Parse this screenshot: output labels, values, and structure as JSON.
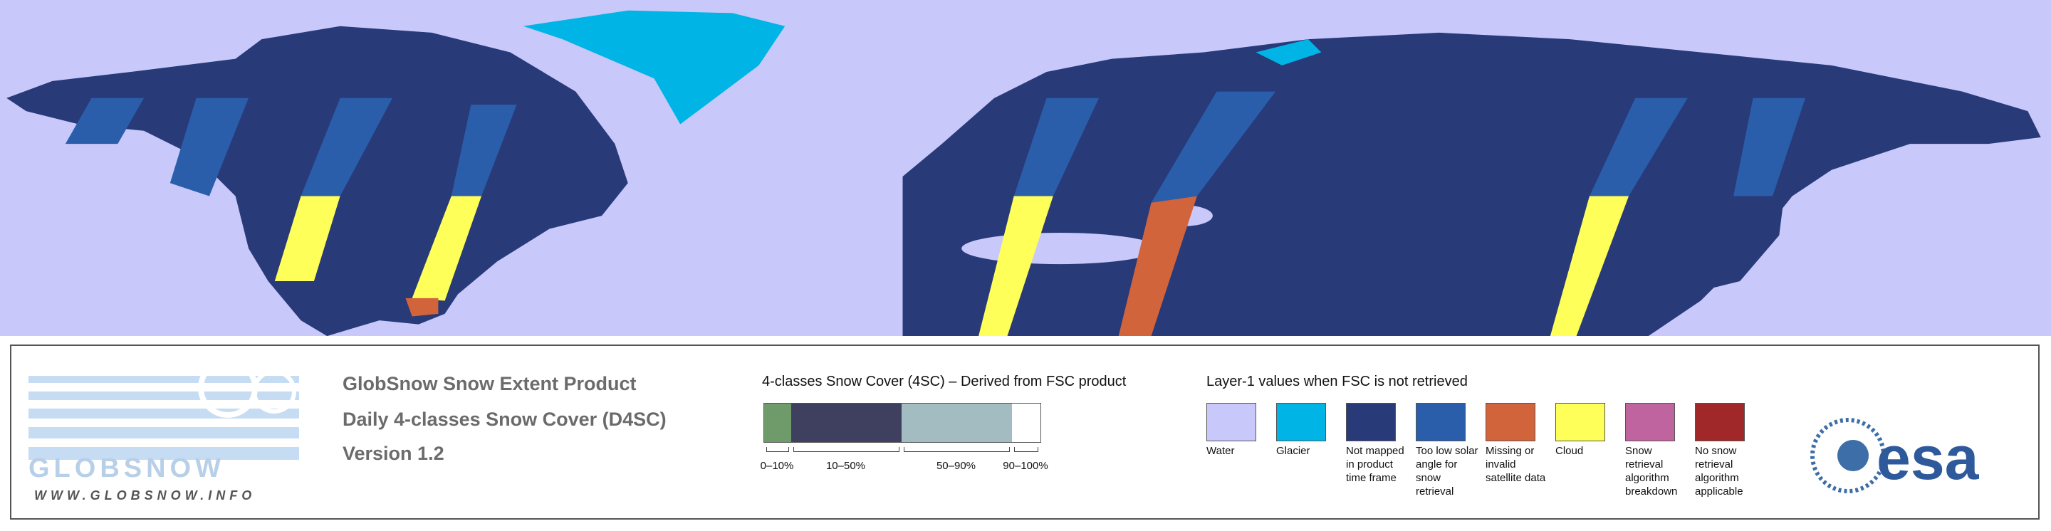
{
  "logo": {
    "name": "GLOBSNOW",
    "url": "WWW.GLOBSNOW.INFO"
  },
  "product": {
    "title": "GlobSnow Snow Extent Product",
    "subtitle": "Daily 4-classes Snow Cover (D4SC)",
    "version": "Version 1.2"
  },
  "snow_cover_scale": {
    "title": "4-classes Snow Cover (4SC) – Derived from FSC product",
    "classes": [
      {
        "label": "0–10%",
        "color": "#6f9a6a"
      },
      {
        "label": "10–50%",
        "color": "#3f3f5f"
      },
      {
        "label": "50–90%",
        "color": "#a3bcc2"
      },
      {
        "label": "90–100%",
        "color": "#ffffff"
      }
    ]
  },
  "layer1_legend": {
    "title": "Layer-1 values when FSC is not retrieved",
    "items": [
      {
        "label": "Water",
        "color": "#c8c8fa"
      },
      {
        "label": "Glacier",
        "color": "#00b4e6"
      },
      {
        "label": "Not mapped in product time frame",
        "color": "#283a78"
      },
      {
        "label": "Too low solar angle for snow retrieval",
        "color": "#2a5eaa"
      },
      {
        "label": "Missing or invalid satellite data",
        "color": "#d2643c"
      },
      {
        "label": "Cloud",
        "color": "#ffff5a"
      },
      {
        "label": "Snow retrieval algorithm breakdown",
        "color": "#c064a0"
      },
      {
        "label": "No snow retrieval algorithm applicable",
        "color": "#a02828"
      }
    ]
  },
  "agency": "esa"
}
